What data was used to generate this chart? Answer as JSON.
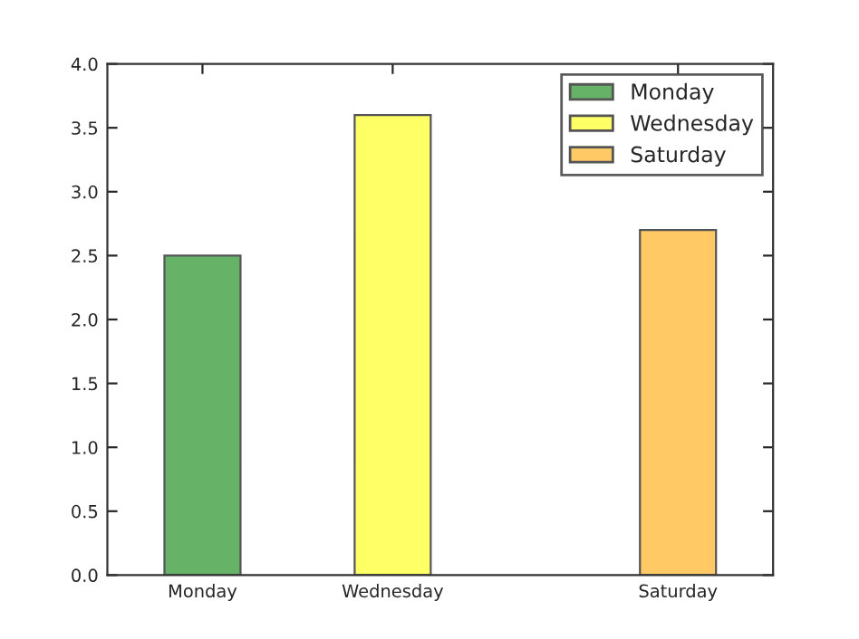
{
  "chart_data": {
    "type": "bar",
    "categories": [
      null,
      "Monday",
      null,
      "Wednesday",
      null,
      null,
      "Saturday",
      null
    ],
    "series": [
      {
        "name": "Monday",
        "color": "#66b266",
        "values": [
          null,
          2.5,
          null,
          null,
          null,
          null,
          null,
          null
        ]
      },
      {
        "name": "Wednesday",
        "color": "#ffff66",
        "values": [
          null,
          null,
          null,
          3.6,
          null,
          null,
          null,
          null
        ]
      },
      {
        "name": "Saturday",
        "color": "#ffc966",
        "values": [
          null,
          null,
          null,
          null,
          null,
          null,
          2.7,
          null
        ]
      }
    ],
    "ylim": [
      0,
      4
    ],
    "yticks": [
      {
        "value": 0,
        "label": "0.0"
      },
      {
        "value": 0.5,
        "label": "0.5"
      },
      {
        "value": 1,
        "label": "1.0"
      },
      {
        "value": 1.5,
        "label": "1.5"
      },
      {
        "value": 2,
        "label": "2.0"
      },
      {
        "value": 2.5,
        "label": "2.5"
      },
      {
        "value": 3,
        "label": "3.0"
      },
      {
        "value": 3.5,
        "label": "3.5"
      },
      {
        "value": 4,
        "label": "4.0"
      }
    ],
    "legend": "top right"
  }
}
